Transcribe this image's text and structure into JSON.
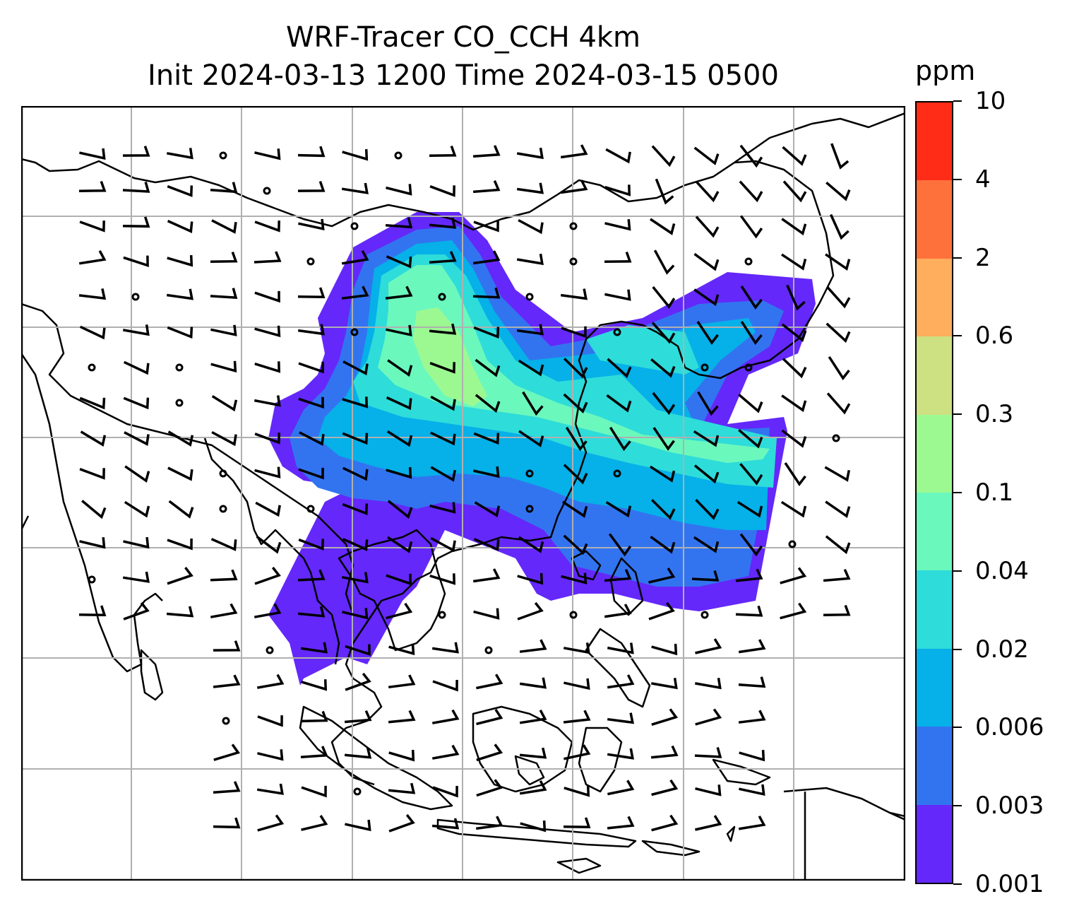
{
  "title": {
    "line1": "WRF-Tracer CO_CCH 4km",
    "line2": "Init 2024-03-13 1200 Time 2024-03-15 0500"
  },
  "map": {
    "gridlines": true,
    "plume_levels_ppm": [
      0.001,
      0.003,
      0.006,
      0.02,
      0.04,
      0.1
    ],
    "wind_barbs": true
  },
  "colorbar": {
    "unit": "ppm",
    "ticks": [
      "0.001",
      "0.003",
      "0.006",
      "0.02",
      "0.04",
      "0.1",
      "0.3",
      "0.6",
      "2",
      "4",
      "10"
    ],
    "colors": [
      "#6428fa",
      "#3274f0",
      "#06b0e8",
      "#2edcda",
      "#6bf8bd",
      "#9cf992",
      "#cde082",
      "#ffae5e",
      "#ff713b",
      "#ff2c18"
    ]
  }
}
